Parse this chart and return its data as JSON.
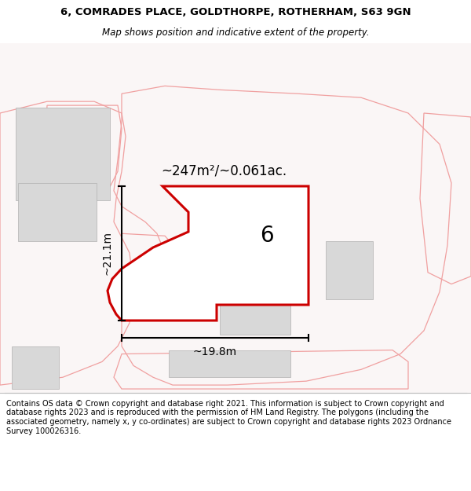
{
  "title_line1": "6, COMRADES PLACE, GOLDTHORPE, ROTHERHAM, S63 9GN",
  "title_line2": "Map shows position and indicative extent of the property.",
  "area_label": "~247m²/~0.061ac.",
  "height_label": "~21.1m",
  "width_label": "~19.8m",
  "number_label": "6",
  "footer_text": "Contains OS data © Crown copyright and database right 2021. This information is subject to Crown copyright and database rights 2023 and is reproduced with the permission of HM Land Registry. The polygons (including the associated geometry, namely x, y co-ordinates) are subject to Crown copyright and database rights 2023 Ordnance Survey 100026316.",
  "bg_color": "#ffffff",
  "map_bg": "#f8f4f4",
  "main_polygon_color": "#cc0000",
  "neighbor_color": "#f0a0a0",
  "building_fill": "#d8d8d8",
  "title_fontsize": 10,
  "footer_fontsize": 7.5,
  "map_white": "#ffffff"
}
